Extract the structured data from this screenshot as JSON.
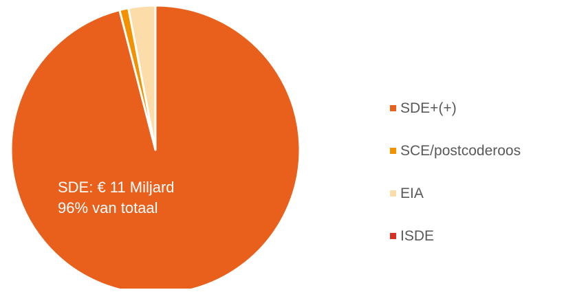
{
  "chart_data": {
    "type": "pie",
    "title": "",
    "slices": [
      {
        "label": "SDE+(+)",
        "value": 96.0,
        "color": "#E8601C"
      },
      {
        "label": "SCE/postcoderoos",
        "value": 1.0,
        "color": "#F39200"
      },
      {
        "label": "EIA",
        "value": 3.0,
        "color": "#FCDDA9"
      },
      {
        "label": "ISDE",
        "value": 0.0,
        "color": "#D93025"
      }
    ],
    "legend": {
      "position": "right"
    },
    "annotation": {
      "line1": "SDE: € 11 Miljard",
      "line2": "96% van totaal"
    }
  }
}
